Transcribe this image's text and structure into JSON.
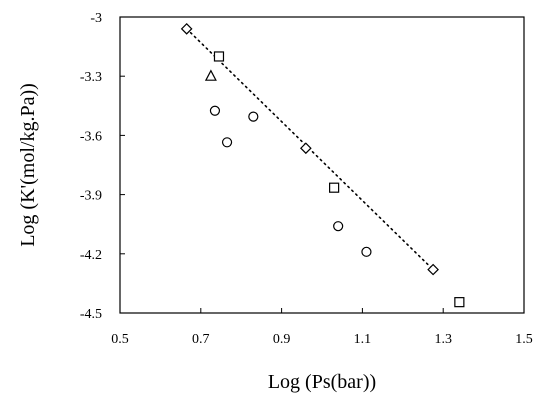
{
  "chart_data": {
    "type": "scatter",
    "title": "",
    "xlabel": "Log (Ps(bar))",
    "ylabel": "Log (K'(mol/kg.Pa))",
    "xlim": [
      0.5,
      1.5
    ],
    "ylim": [
      -4.5,
      -3
    ],
    "xticks": [
      0.5,
      0.7,
      0.9,
      1.1,
      1.3,
      1.5
    ],
    "xtick_labels": [
      "0.5",
      "0.7",
      "0.9",
      "1.1",
      "1.3",
      "1.5"
    ],
    "yticks": [
      -3,
      -3.3,
      -3.6,
      -3.9,
      -4.2,
      -4.5
    ],
    "ytick_labels": [
      "-3",
      "-3.3",
      "-3.6",
      "-3.9",
      "-4.2",
      "-4.5"
    ],
    "grid": false,
    "legend": "none",
    "series": [
      {
        "marker": "diamond",
        "points": [
          [
            0.665,
            -3.06
          ],
          [
            0.96,
            -3.665
          ],
          [
            1.275,
            -4.28
          ]
        ]
      },
      {
        "marker": "square",
        "points": [
          [
            0.745,
            -3.2
          ],
          [
            1.03,
            -3.865
          ],
          [
            1.34,
            -4.445
          ]
        ]
      },
      {
        "marker": "triangle",
        "points": [
          [
            0.725,
            -3.3
          ]
        ]
      },
      {
        "marker": "circle",
        "points": [
          [
            0.735,
            -3.475
          ],
          [
            0.765,
            -3.635
          ],
          [
            0.83,
            -3.505
          ],
          [
            1.04,
            -4.06
          ],
          [
            1.11,
            -4.19
          ]
        ]
      }
    ],
    "trendline": {
      "style": "dotted",
      "from": [
        0.665,
        -3.06
      ],
      "to": [
        1.275,
        -4.28
      ]
    }
  }
}
